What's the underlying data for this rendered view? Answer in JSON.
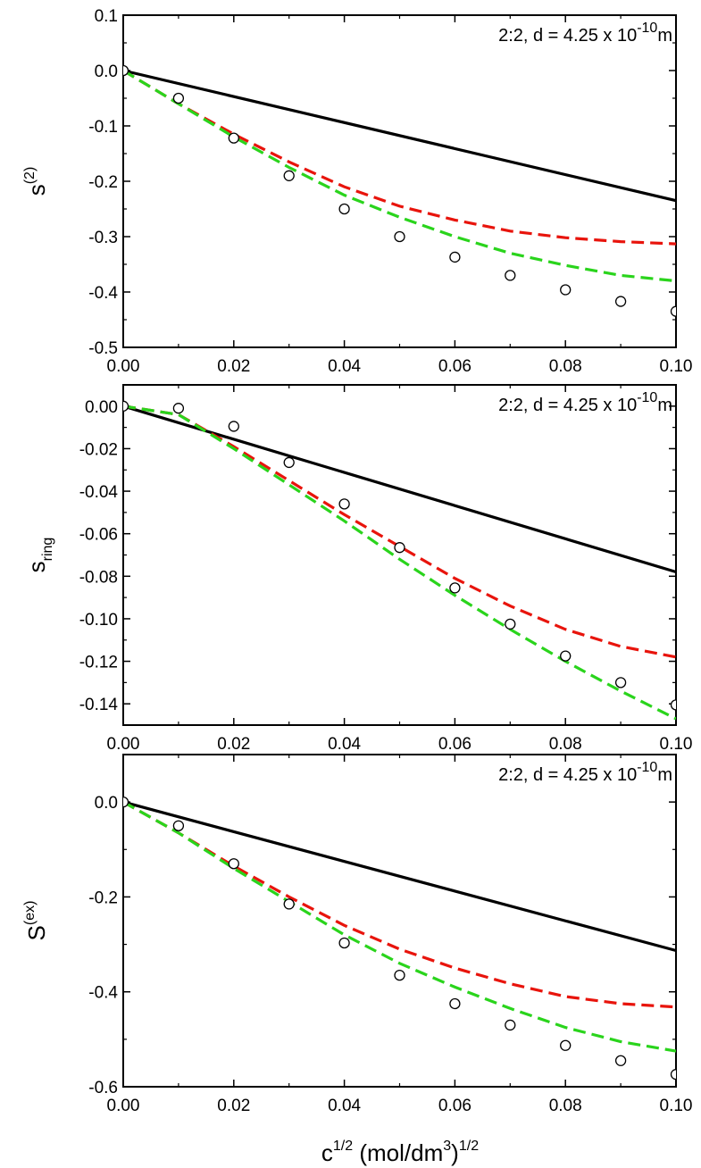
{
  "chart_data": [
    {
      "type": "line",
      "ylabel_base": "s",
      "ylabel_sup": "(2)",
      "ylabel_sub": "",
      "annotation": {
        "text": "2:2, d = 4.25 x 10",
        "exp": "-10",
        "unit": "m"
      },
      "xlim": [
        0,
        0.1
      ],
      "ylim": [
        -0.5,
        0.1
      ],
      "x_ticks": [
        0.0,
        0.02,
        0.04,
        0.06,
        0.08,
        0.1
      ],
      "x_tick_labels": [
        "0.00",
        "0.02",
        "0.04",
        "0.06",
        "0.08",
        "0.10"
      ],
      "y_ticks": [
        -0.5,
        -0.4,
        -0.3,
        -0.2,
        -0.1,
        0.0,
        0.1
      ],
      "y_tick_labels": [
        "-0.5",
        "-0.4",
        "-0.3",
        "-0.2",
        "-0.1",
        "0.0",
        "0.1"
      ],
      "series": [
        {
          "style": "solid",
          "color": "#000000",
          "x": [
            0,
            0.1
          ],
          "y": [
            0,
            -0.235
          ]
        },
        {
          "style": "dashed",
          "color": "#e8140c",
          "x": [
            0,
            0.01,
            0.02,
            0.03,
            0.04,
            0.05,
            0.06,
            0.07,
            0.08,
            0.09,
            0.1
          ],
          "y": [
            0,
            -0.06,
            -0.115,
            -0.165,
            -0.21,
            -0.245,
            -0.27,
            -0.29,
            -0.302,
            -0.309,
            -0.313
          ]
        },
        {
          "style": "dashed",
          "color": "#2ad41c",
          "x": [
            0,
            0.01,
            0.02,
            0.03,
            0.04,
            0.05,
            0.06,
            0.07,
            0.08,
            0.09,
            0.1
          ],
          "y": [
            0,
            -0.06,
            -0.12,
            -0.175,
            -0.225,
            -0.265,
            -0.3,
            -0.33,
            -0.352,
            -0.37,
            -0.38
          ]
        },
        {
          "style": "markers",
          "color": "#000000",
          "x": [
            0,
            0.01,
            0.02,
            0.03,
            0.04,
            0.05,
            0.06,
            0.07,
            0.08,
            0.09,
            0.1
          ],
          "y": [
            0,
            -0.05,
            -0.122,
            -0.19,
            -0.25,
            -0.3,
            -0.337,
            -0.37,
            -0.396,
            -0.417,
            -0.435
          ]
        }
      ]
    },
    {
      "type": "line",
      "ylabel_base": "s",
      "ylabel_sup": "",
      "ylabel_sub": "ring",
      "annotation": {
        "text": "2:2, d = 4.25 x 10",
        "exp": "-10",
        "unit": "m"
      },
      "xlim": [
        0,
        0.1
      ],
      "ylim": [
        -0.15,
        0.01
      ],
      "x_ticks": [
        0.0,
        0.02,
        0.04,
        0.06,
        0.08,
        0.1
      ],
      "x_tick_labels": [
        "0.00",
        "0.02",
        "0.04",
        "0.06",
        "0.08",
        "0.10"
      ],
      "y_ticks": [
        -0.14,
        -0.12,
        -0.1,
        -0.08,
        -0.06,
        -0.04,
        -0.02,
        0.0
      ],
      "y_tick_labels": [
        "-0.14",
        "-0.12",
        "-0.10",
        "-0.08",
        "-0.06",
        "-0.04",
        "-0.02",
        "0.00"
      ],
      "series": [
        {
          "style": "solid",
          "color": "#000000",
          "x": [
            0,
            0.1
          ],
          "y": [
            0,
            -0.078
          ]
        },
        {
          "style": "dashed",
          "color": "#e8140c",
          "x": [
            0,
            0.01,
            0.02,
            0.03,
            0.04,
            0.05,
            0.06,
            0.07,
            0.08,
            0.09,
            0.1
          ],
          "y": [
            0,
            -0.004,
            -0.019,
            -0.035,
            -0.051,
            -0.066,
            -0.081,
            -0.094,
            -0.105,
            -0.113,
            -0.118
          ]
        },
        {
          "style": "dashed",
          "color": "#2ad41c",
          "x": [
            0,
            0.01,
            0.02,
            0.03,
            0.04,
            0.05,
            0.06,
            0.07,
            0.08,
            0.09,
            0.1
          ],
          "y": [
            0,
            -0.004,
            -0.02,
            -0.037,
            -0.054,
            -0.072,
            -0.089,
            -0.105,
            -0.12,
            -0.134,
            -0.147
          ]
        },
        {
          "style": "markers",
          "color": "#000000",
          "x": [
            0,
            0.01,
            0.02,
            0.03,
            0.04,
            0.05,
            0.06,
            0.07,
            0.08,
            0.09,
            0.1
          ],
          "y": [
            0,
            -0.001,
            -0.0095,
            -0.0265,
            -0.046,
            -0.0665,
            -0.0855,
            -0.1025,
            -0.1175,
            -0.13,
            -0.1405
          ]
        }
      ]
    },
    {
      "type": "line",
      "ylabel_base": "S",
      "ylabel_sup": "(ex)",
      "ylabel_sub": "",
      "annotation": {
        "text": "2:2, d = 4.25 x 10",
        "exp": "-10",
        "unit": "m"
      },
      "xlim": [
        0,
        0.1
      ],
      "ylim": [
        -0.6,
        0.1
      ],
      "x_ticks": [
        0.0,
        0.02,
        0.04,
        0.06,
        0.08,
        0.1
      ],
      "x_tick_labels": [
        "0.00",
        "0.02",
        "0.04",
        "0.06",
        "0.08",
        "0.10"
      ],
      "y_ticks": [
        -0.6,
        -0.4,
        -0.2,
        0.0
      ],
      "y_tick_labels": [
        "-0.6",
        "-0.4",
        "-0.2",
        "0.0"
      ],
      "series": [
        {
          "style": "solid",
          "color": "#000000",
          "x": [
            0,
            0.1
          ],
          "y": [
            0,
            -0.313
          ]
        },
        {
          "style": "dashed",
          "color": "#e8140c",
          "x": [
            0,
            0.01,
            0.02,
            0.03,
            0.04,
            0.05,
            0.06,
            0.07,
            0.08,
            0.09,
            0.1
          ],
          "y": [
            0,
            -0.065,
            -0.135,
            -0.2,
            -0.26,
            -0.31,
            -0.35,
            -0.383,
            -0.41,
            -0.425,
            -0.432
          ]
        },
        {
          "style": "dashed",
          "color": "#2ad41c",
          "x": [
            0,
            0.01,
            0.02,
            0.03,
            0.04,
            0.05,
            0.06,
            0.07,
            0.08,
            0.09,
            0.1
          ],
          "y": [
            0,
            -0.065,
            -0.14,
            -0.21,
            -0.28,
            -0.34,
            -0.39,
            -0.435,
            -0.475,
            -0.505,
            -0.525
          ]
        },
        {
          "style": "markers",
          "color": "#000000",
          "x": [
            0,
            0.01,
            0.02,
            0.03,
            0.04,
            0.05,
            0.06,
            0.07,
            0.08,
            0.09,
            0.1
          ],
          "y": [
            0,
            -0.05,
            -0.13,
            -0.215,
            -0.297,
            -0.365,
            -0.425,
            -0.47,
            -0.513,
            -0.545,
            -0.574
          ]
        }
      ]
    }
  ],
  "xlabel": {
    "base": "c",
    "sup1": "1/2",
    "mid": " (mol/dm",
    "sup2": "3",
    "close": ")",
    "sup3": "1/2"
  }
}
